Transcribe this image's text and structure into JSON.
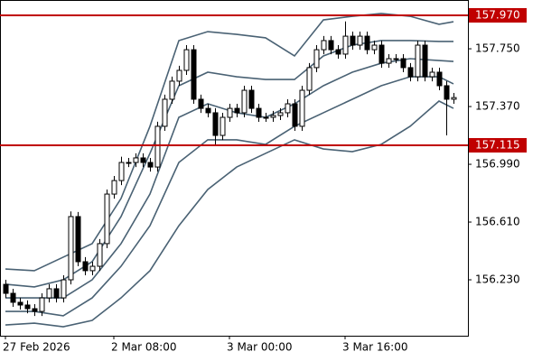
{
  "chart_data": {
    "type": "candlestick",
    "categories": [
      "27 Feb 2026",
      null,
      null,
      null,
      null,
      null,
      null,
      null,
      null,
      null,
      null,
      null,
      null,
      null,
      null,
      "2 Mar 08:00",
      null,
      null,
      null,
      null,
      null,
      null,
      null,
      null,
      null,
      null,
      null,
      null,
      null,
      null,
      null,
      "3 Mar 00:00",
      null,
      null,
      null,
      null,
      null,
      null,
      null,
      null,
      null,
      null,
      null,
      null,
      null,
      null,
      null,
      "3 Mar 16:00",
      null,
      null,
      null,
      null,
      null,
      null,
      null,
      null,
      null,
      null,
      null,
      null,
      null,
      null,
      null
    ],
    "open": [
      156.2,
      156.141,
      156.082,
      156.064,
      156.04,
      156.022,
      156.111,
      156.171,
      156.111,
      156.23,
      156.646,
      156.349,
      156.29,
      156.319,
      156.468,
      156.794,
      156.883,
      157.002,
      157.002,
      157.032,
      157.002,
      156.972,
      157.24,
      157.418,
      157.537,
      157.608,
      157.744,
      157.418,
      157.358,
      157.329,
      157.18,
      157.299,
      157.358,
      157.329,
      157.477,
      157.358,
      157.299,
      157.299,
      157.311,
      157.329,
      157.388,
      157.24,
      157.477,
      157.626,
      157.744,
      157.804,
      157.744,
      157.715,
      157.833,
      157.774,
      157.833,
      157.744,
      157.774,
      157.655,
      157.685,
      157.685,
      157.626,
      157.566,
      157.774,
      157.566,
      157.596,
      157.507,
      157.418
    ],
    "high": [
      156.23,
      156.171,
      156.112,
      156.094,
      156.07,
      156.141,
      156.201,
      156.201,
      156.26,
      156.68,
      156.676,
      156.379,
      156.349,
      156.498,
      156.824,
      156.913,
      157.04,
      157.032,
      157.062,
      157.062,
      157.032,
      157.27,
      157.448,
      157.567,
      157.638,
      157.774,
      157.774,
      157.448,
      157.388,
      157.359,
      157.329,
      157.388,
      157.388,
      157.507,
      157.507,
      157.388,
      157.329,
      157.341,
      157.359,
      157.418,
      157.418,
      157.507,
      157.656,
      157.774,
      157.834,
      157.834,
      157.774,
      157.93,
      157.863,
      157.863,
      157.863,
      157.804,
      157.804,
      157.715,
      157.715,
      157.715,
      157.656,
      157.804,
      157.804,
      157.626,
      157.626,
      157.537,
      157.459
    ],
    "low": [
      156.111,
      156.052,
      156.034,
      156.01,
      155.992,
      155.992,
      156.081,
      156.081,
      156.081,
      156.2,
      156.319,
      156.26,
      156.26,
      156.289,
      156.438,
      156.764,
      156.853,
      156.972,
      156.972,
      156.972,
      156.942,
      156.942,
      157.21,
      157.388,
      157.507,
      157.578,
      157.388,
      157.328,
      157.299,
      157.11,
      157.15,
      157.269,
      157.299,
      157.299,
      157.328,
      157.269,
      157.269,
      157.269,
      157.281,
      157.299,
      157.21,
      157.21,
      157.447,
      157.596,
      157.714,
      157.714,
      157.685,
      157.685,
      157.744,
      157.744,
      157.714,
      157.714,
      157.625,
      157.625,
      157.655,
      157.596,
      157.536,
      157.536,
      157.536,
      157.536,
      157.477,
      157.18,
      157.388
    ],
    "close": [
      156.141,
      156.082,
      156.064,
      156.04,
      156.022,
      156.111,
      156.171,
      156.111,
      156.23,
      156.646,
      156.349,
      156.29,
      156.319,
      156.468,
      156.794,
      156.883,
      157.002,
      157.002,
      157.032,
      157.002,
      156.972,
      157.24,
      157.418,
      157.537,
      157.608,
      157.744,
      157.418,
      157.358,
      157.329,
      157.18,
      157.299,
      157.358,
      157.329,
      157.477,
      157.358,
      157.299,
      157.299,
      157.311,
      157.329,
      157.388,
      157.24,
      157.477,
      157.626,
      157.744,
      157.804,
      157.744,
      157.715,
      157.833,
      157.774,
      157.833,
      157.744,
      157.774,
      157.655,
      157.685,
      157.685,
      157.626,
      157.566,
      157.774,
      157.566,
      157.596,
      157.507,
      157.418,
      157.429
    ],
    "up_color": "#ffffff",
    "down_color": "#000000",
    "edge_color": "#000000",
    "bands": [
      {
        "color": "#4a6274",
        "x": [
          0,
          4,
          8,
          12,
          16,
          20,
          24,
          28,
          32,
          36,
          40,
          44,
          48,
          52,
          56,
          60,
          62
        ],
        "values": [
          156.301,
          156.29,
          156.379,
          156.468,
          156.765,
          157.24,
          157.804,
          157.863,
          157.845,
          157.822,
          157.703,
          157.94,
          157.964,
          157.982,
          157.964,
          157.911,
          157.928
        ]
      },
      {
        "color": "#4a6274",
        "x": [
          0,
          4,
          8,
          12,
          16,
          20,
          24,
          28,
          32,
          36,
          40,
          44,
          48,
          52,
          56,
          60,
          62
        ],
        "values": [
          156.201,
          156.183,
          156.23,
          156.349,
          156.646,
          157.062,
          157.507,
          157.596,
          157.566,
          157.548,
          157.548,
          157.703,
          157.774,
          157.804,
          157.804,
          157.798,
          157.798
        ]
      },
      {
        "color": "#4a6274",
        "x": [
          0,
          4,
          8,
          12,
          16,
          20,
          24,
          28,
          32,
          36,
          40,
          44,
          48,
          52,
          56,
          60,
          62
        ],
        "values": [
          156.111,
          156.111,
          156.111,
          156.23,
          156.468,
          156.794,
          157.299,
          157.388,
          157.329,
          157.299,
          157.388,
          157.507,
          157.596,
          157.655,
          157.685,
          157.673,
          157.667
        ]
      },
      {
        "color": "#4a6274",
        "x": [
          0,
          4,
          8,
          12,
          16,
          20,
          24,
          28,
          32,
          36,
          40,
          44,
          48,
          52,
          56,
          60,
          62
        ],
        "values": [
          156.022,
          156.022,
          155.993,
          156.111,
          156.319,
          156.586,
          157.002,
          157.151,
          157.151,
          157.121,
          157.24,
          157.329,
          157.418,
          157.507,
          157.566,
          157.566,
          157.519
        ]
      },
      {
        "color": "#4a6274",
        "x": [
          0,
          4,
          8,
          12,
          16,
          20,
          24,
          28,
          32,
          36,
          40,
          44,
          48,
          52,
          56,
          60,
          62
        ],
        "values": [
          155.933,
          155.945,
          155.921,
          155.963,
          156.111,
          156.29,
          156.586,
          156.824,
          156.972,
          157.062,
          157.151,
          157.091,
          157.073,
          157.121,
          157.24,
          157.406,
          157.358
        ]
      }
    ],
    "levels": [
      {
        "value": 157.97,
        "label": "157.970",
        "color": "#c00000"
      },
      {
        "value": 157.115,
        "label": "157.115",
        "color": "#c00000"
      }
    ],
    "ylim": [
      155.862,
      158.071
    ],
    "yticks": [
      {
        "value": 157.75,
        "label": "157.750"
      },
      {
        "value": 157.37,
        "label": "157.370"
      },
      {
        "value": 156.99,
        "label": "156.990"
      },
      {
        "value": 156.61,
        "label": "156.610"
      },
      {
        "value": 156.23,
        "label": "156.230"
      }
    ]
  }
}
